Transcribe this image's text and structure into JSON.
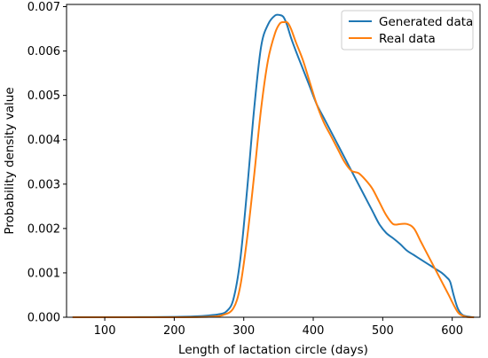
{
  "chart_data": {
    "type": "line",
    "xlabel": "Length of lactation circle (days)",
    "ylabel": "Probability density value",
    "xlim": [
      45,
      640
    ],
    "ylim": [
      0,
      0.00705
    ],
    "xticks": [
      100,
      200,
      300,
      400,
      500,
      600
    ],
    "xtick_labels": [
      "100",
      "200",
      "300",
      "400",
      "500",
      "600"
    ],
    "yticks": [
      0,
      0.001,
      0.002,
      0.003,
      0.004,
      0.005,
      0.006,
      0.007
    ],
    "ytick_labels": [
      "0.000",
      "0.001",
      "0.002",
      "0.003",
      "0.004",
      "0.005",
      "0.006",
      "0.007"
    ],
    "grid": false,
    "legend_position": "top-right",
    "series": [
      {
        "name": "Generated data",
        "color": "#1f77b4",
        "x": [
          55,
          100,
          150,
          200,
          230,
          250,
          265,
          275,
          285,
          295,
          305,
          315,
          325,
          335,
          345,
          352,
          357,
          362,
          368,
          375,
          385,
          395,
          405,
          415,
          425,
          435,
          445,
          455,
          465,
          475,
          485,
          495,
          505,
          515,
          525,
          535,
          545,
          555,
          565,
          575,
          585,
          592,
          597,
          602,
          608,
          615,
          625,
          630
        ],
        "y": [
          0,
          0,
          2e-06,
          8e-06,
          2e-05,
          4e-05,
          7e-05,
          0.00013,
          0.0004,
          0.0013,
          0.0029,
          0.0047,
          0.0061,
          0.0066,
          0.0068,
          0.00681,
          0.00677,
          0.0066,
          0.0063,
          0.006,
          0.0056,
          0.0052,
          0.0048,
          0.0045,
          0.0042,
          0.0039,
          0.0036,
          0.0033,
          0.003,
          0.0027,
          0.0024,
          0.0021,
          0.0019,
          0.00178,
          0.00165,
          0.0015,
          0.0014,
          0.0013,
          0.0012,
          0.0011,
          0.001,
          0.0009,
          0.0008,
          0.0005,
          0.0002,
          5e-05,
          1e-05,
          0
        ]
      },
      {
        "name": "Real data",
        "color": "#ff7f0e",
        "x": [
          55,
          200,
          250,
          270,
          285,
          295,
          305,
          315,
          325,
          335,
          345,
          352,
          358,
          363,
          368,
          375,
          385,
          395,
          405,
          415,
          425,
          435,
          445,
          455,
          465,
          475,
          485,
          495,
          505,
          515,
          525,
          535,
          545,
          555,
          565,
          575,
          585,
          595,
          603,
          610,
          620,
          630
        ],
        "y": [
          0,
          0,
          1e-05,
          5e-05,
          0.0002,
          0.0007,
          0.0018,
          0.0032,
          0.0047,
          0.0058,
          0.0064,
          0.00662,
          0.00665,
          0.00664,
          0.0065,
          0.0062,
          0.0058,
          0.0053,
          0.0048,
          0.0044,
          0.0041,
          0.0038,
          0.0035,
          0.0033,
          0.00325,
          0.0031,
          0.0029,
          0.0026,
          0.0023,
          0.0021,
          0.0021,
          0.0021,
          0.002,
          0.0017,
          0.0014,
          0.0011,
          0.0008,
          0.0005,
          0.00025,
          8e-05,
          1e-05,
          0
        ]
      }
    ]
  }
}
